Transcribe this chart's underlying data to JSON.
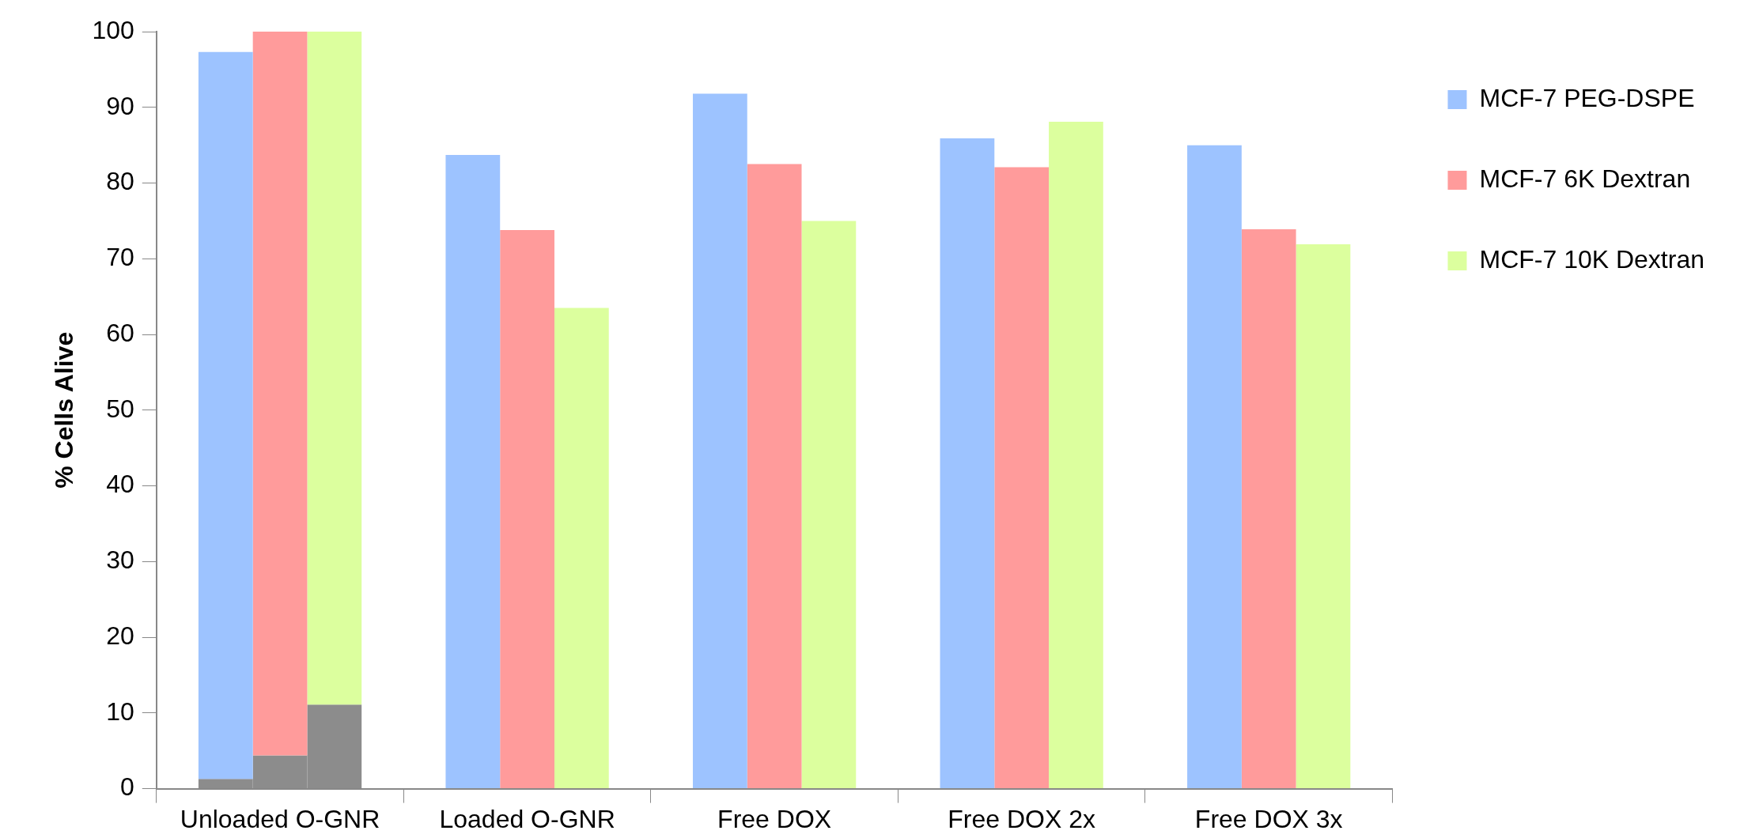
{
  "chart_data": {
    "type": "bar",
    "ylabel": "% Cells Alive",
    "categories": [
      "Unloaded O-GNR",
      "Loaded O-GNR",
      "Free DOX",
      "Free DOX 2x",
      "Free DOX 3x"
    ],
    "ylim": [
      0,
      100
    ],
    "yticks": [
      0,
      10,
      20,
      30,
      40,
      50,
      60,
      70,
      80,
      90,
      100
    ],
    "grid": false,
    "legend": "right",
    "series": [
      {
        "name": "MCF-7 PEG-DSPE",
        "color": "#9dc3ff",
        "base": [
          1.3,
          0,
          0,
          0,
          0
        ],
        "values": [
          96.0,
          83.7,
          91.8,
          85.9,
          85.0
        ]
      },
      {
        "name": "MCF-7 6K Dextran",
        "color": "#ff9b9b",
        "base": [
          4.4,
          0,
          0,
          0,
          0
        ],
        "values": [
          95.6,
          73.8,
          82.5,
          82.1,
          73.9
        ]
      },
      {
        "name": "MCF-7 10K Dextran",
        "color": "#dcff9e",
        "base": [
          11.1,
          0,
          0,
          0,
          0
        ],
        "values": [
          88.9,
          63.5,
          75.0,
          88.1,
          71.9
        ]
      },
      {
        "color": "#8c8c8c",
        "values": [
          1.3,
          null,
          null,
          null,
          null
        ]
      },
      {
        "color": "#8c8c8c",
        "values": [
          4.4,
          null,
          null,
          null,
          null
        ]
      },
      {
        "color": "#8c8c8c",
        "values": [
          11.1,
          null,
          null,
          null,
          null
        ]
      }
    ]
  }
}
